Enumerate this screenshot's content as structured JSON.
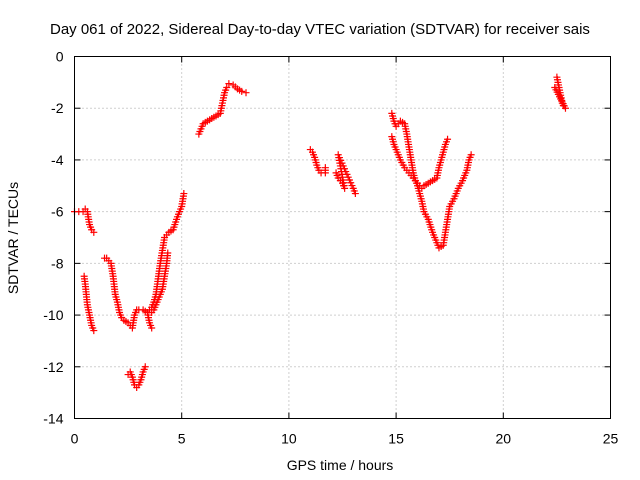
{
  "chart_data": {
    "type": "scatter",
    "title": "Day 061 of 2022, Sidereal Day-to-day VTEC variation (SDTVAR) for receiver sais",
    "xlabel": "GPS time / hours",
    "ylabel": "SDTVAR / TECUs",
    "xlim": [
      0,
      25
    ],
    "ylim": [
      -14,
      0
    ],
    "xticks": [
      0,
      5,
      10,
      15,
      20,
      25
    ],
    "xtick_labels": [
      "0",
      "5",
      "10",
      "15",
      "20",
      "25"
    ],
    "yticks": [
      0,
      -2,
      -4,
      -6,
      -8,
      -10,
      -12,
      -14
    ],
    "ytick_labels": [
      "0",
      "-2",
      "-4",
      "-6",
      "-8",
      "-10",
      "-12",
      "-14"
    ],
    "grid": true,
    "marker": "+",
    "color": "#ff0000",
    "series": [
      {
        "name": "SDTVAR",
        "segments": [
          [
            [
              0.0,
              -6.0
            ],
            [
              0.2,
              -6.0
            ],
            [
              0.4,
              -6.0
            ],
            [
              0.5,
              -5.9
            ],
            [
              0.6,
              -6.0
            ],
            [
              0.7,
              -6.5
            ],
            [
              0.8,
              -6.7
            ],
            [
              0.9,
              -6.8
            ]
          ],
          [
            [
              0.45,
              -8.5
            ],
            [
              0.5,
              -8.8
            ],
            [
              0.55,
              -9.2
            ],
            [
              0.6,
              -9.6
            ],
            [
              0.7,
              -10.0
            ],
            [
              0.8,
              -10.4
            ],
            [
              0.9,
              -10.6
            ]
          ],
          [
            [
              1.4,
              -7.8
            ],
            [
              1.5,
              -7.8
            ],
            [
              1.6,
              -7.9
            ],
            [
              1.7,
              -8.0
            ],
            [
              1.8,
              -8.5
            ],
            [
              1.9,
              -9.2
            ],
            [
              2.0,
              -9.5
            ],
            [
              2.1,
              -9.9
            ],
            [
              2.2,
              -10.1
            ],
            [
              2.3,
              -10.2
            ],
            [
              2.5,
              -10.3
            ],
            [
              2.6,
              -10.4
            ],
            [
              2.7,
              -10.5
            ],
            [
              2.8,
              -10.0
            ],
            [
              2.9,
              -9.8
            ],
            [
              3.0,
              -9.8
            ],
            [
              3.2,
              -9.8
            ],
            [
              3.4,
              -9.9
            ],
            [
              3.5,
              -10.3
            ],
            [
              3.6,
              -10.5
            ]
          ],
          [
            [
              2.5,
              -12.3
            ],
            [
              2.6,
              -12.2
            ],
            [
              2.7,
              -12.4
            ],
            [
              2.8,
              -12.7
            ],
            [
              2.9,
              -12.8
            ],
            [
              3.0,
              -12.7
            ],
            [
              3.1,
              -12.5
            ],
            [
              3.2,
              -12.2
            ],
            [
              3.3,
              -12.0
            ]
          ],
          [
            [
              3.5,
              -9.8
            ],
            [
              3.6,
              -9.7
            ],
            [
              3.7,
              -9.5
            ],
            [
              3.8,
              -9.2
            ],
            [
              3.9,
              -8.6
            ],
            [
              4.0,
              -8.0
            ],
            [
              4.1,
              -7.5
            ],
            [
              4.2,
              -7.0
            ],
            [
              4.4,
              -6.8
            ],
            [
              4.6,
              -6.7
            ],
            [
              4.8,
              -6.2
            ],
            [
              5.0,
              -5.8
            ],
            [
              5.1,
              -5.3
            ]
          ],
          [
            [
              3.6,
              -9.9
            ],
            [
              3.7,
              -9.8
            ],
            [
              3.8,
              -9.6
            ],
            [
              3.9,
              -9.4
            ],
            [
              4.0,
              -9.2
            ],
            [
              4.1,
              -9.0
            ],
            [
              4.2,
              -8.5
            ],
            [
              4.3,
              -8.0
            ],
            [
              4.35,
              -7.6
            ]
          ],
          [
            [
              5.8,
              -3.0
            ],
            [
              5.9,
              -2.8
            ],
            [
              6.0,
              -2.6
            ],
            [
              6.2,
              -2.5
            ],
            [
              6.4,
              -2.4
            ],
            [
              6.6,
              -2.3
            ],
            [
              6.8,
              -2.2
            ],
            [
              6.9,
              -1.8
            ],
            [
              7.0,
              -1.4
            ],
            [
              7.1,
              -1.2
            ],
            [
              7.2,
              -1.05
            ],
            [
              7.4,
              -1.1
            ],
            [
              7.6,
              -1.25
            ],
            [
              7.8,
              -1.35
            ],
            [
              8.0,
              -1.4
            ]
          ],
          [
            [
              11.0,
              -3.6
            ],
            [
              11.1,
              -3.7
            ],
            [
              11.2,
              -3.9
            ],
            [
              11.3,
              -4.2
            ],
            [
              11.4,
              -4.4
            ],
            [
              11.5,
              -4.5
            ],
            [
              11.7,
              -4.5
            ],
            [
              11.7,
              -4.3
            ]
          ],
          [
            [
              12.2,
              -4.5
            ],
            [
              12.3,
              -4.7
            ],
            [
              12.4,
              -4.8
            ],
            [
              12.5,
              -4.9
            ],
            [
              12.6,
              -5.1
            ],
            [
              12.3,
              -3.8
            ],
            [
              13.0,
              -5.1
            ],
            [
              13.1,
              -5.3
            ]
          ],
          [
            [
              14.8,
              -2.2
            ],
            [
              14.9,
              -2.5
            ],
            [
              15.0,
              -2.7
            ],
            [
              15.1,
              -2.6
            ],
            [
              15.2,
              -2.5
            ],
            [
              15.4,
              -2.6
            ],
            [
              15.5,
              -3.0
            ],
            [
              15.6,
              -3.5
            ],
            [
              15.7,
              -4.0
            ],
            [
              15.8,
              -4.5
            ],
            [
              15.9,
              -4.8
            ],
            [
              16.0,
              -5.0
            ],
            [
              16.1,
              -5.3
            ],
            [
              16.2,
              -5.6
            ],
            [
              16.3,
              -6.0
            ],
            [
              16.5,
              -6.3
            ],
            [
              16.7,
              -6.8
            ],
            [
              16.9,
              -7.2
            ],
            [
              17.0,
              -7.4
            ],
            [
              17.2,
              -7.3
            ],
            [
              17.3,
              -6.8
            ],
            [
              17.4,
              -6.3
            ],
            [
              17.5,
              -5.8
            ],
            [
              17.7,
              -5.5
            ],
            [
              17.9,
              -5.1
            ],
            [
              18.1,
              -4.8
            ],
            [
              18.3,
              -4.4
            ],
            [
              18.4,
              -4.0
            ],
            [
              18.5,
              -3.8
            ]
          ],
          [
            [
              14.8,
              -3.1
            ],
            [
              14.9,
              -3.4
            ],
            [
              15.0,
              -3.6
            ],
            [
              15.2,
              -4.0
            ],
            [
              15.4,
              -4.3
            ],
            [
              15.6,
              -4.5
            ],
            [
              15.8,
              -4.7
            ],
            [
              16.0,
              -4.9
            ],
            [
              16.2,
              -5.1
            ],
            [
              16.3,
              -5.0
            ],
            [
              16.5,
              -4.9
            ],
            [
              16.7,
              -4.8
            ],
            [
              16.9,
              -4.7
            ],
            [
              17.0,
              -4.3
            ],
            [
              17.1,
              -4.0
            ],
            [
              17.2,
              -3.7
            ],
            [
              17.3,
              -3.4
            ],
            [
              17.4,
              -3.2
            ]
          ],
          [
            [
              22.5,
              -0.8
            ],
            [
              22.55,
              -1.0
            ],
            [
              22.6,
              -1.2
            ],
            [
              22.65,
              -1.4
            ],
            [
              22.7,
              -1.6
            ],
            [
              22.75,
              -1.8
            ],
            [
              22.8,
              -1.9
            ],
            [
              22.9,
              -2.0
            ],
            [
              22.4,
              -1.2
            ]
          ]
        ]
      }
    ]
  }
}
